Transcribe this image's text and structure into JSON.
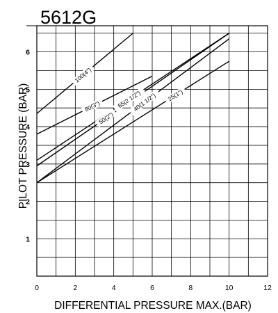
{
  "chart_data": {
    "type": "line",
    "title": "5612G",
    "xlabel": "DIFFERENTIAL PRESSURE MAX.(BAR)",
    "ylabel": "PILOT PRESSURE (BAR)",
    "xlim": [
      0,
      12
    ],
    "ylim": [
      0,
      6.7
    ],
    "xticks": [
      0,
      2,
      4,
      6,
      8,
      10,
      12
    ],
    "yticks": [
      1,
      2,
      3,
      4,
      5,
      6
    ],
    "grid": true,
    "x_grid_step": 1,
    "y_grid_step": 0.5,
    "series": [
      {
        "name": "100(4\")",
        "x": [
          0,
          5
        ],
        "y": [
          4.35,
          6.5
        ]
      },
      {
        "name": "80(3\")",
        "x": [
          0,
          6
        ],
        "y": [
          3.8,
          5.35
        ]
      },
      {
        "name": "65(2 1/2\")",
        "x": [
          0,
          10
        ],
        "y": [
          3.1,
          6.5
        ]
      },
      {
        "name": "50(2\")",
        "x": [
          0,
          10
        ],
        "y": [
          2.95,
          6.5
        ]
      },
      {
        "name": "40(1 1/2\")",
        "x": [
          0,
          10
        ],
        "y": [
          2.5,
          6.35
        ]
      },
      {
        "name": "25(1\")",
        "x": [
          0,
          10
        ],
        "y": [
          2.5,
          5.75
        ]
      }
    ]
  }
}
